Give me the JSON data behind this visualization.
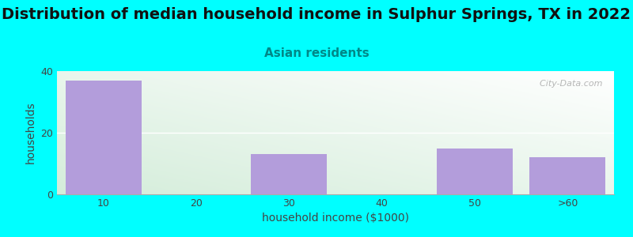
{
  "title": "Distribution of median household income in Sulphur Springs, TX in 2022",
  "subtitle": "Asian residents",
  "xlabel": "household income ($1000)",
  "ylabel": "households",
  "background_color": "#00FFFF",
  "bar_color": "#b39ddb",
  "categories": [
    "10",
    "20",
    "30",
    "40",
    "50",
    ">60"
  ],
  "values": [
    37,
    0,
    13,
    0,
    15,
    12
  ],
  "ylim": [
    0,
    40
  ],
  "yticks": [
    0,
    20,
    40
  ],
  "watermark": "  City-Data.com",
  "title_fontsize": 14,
  "subtitle_fontsize": 11,
  "axis_label_fontsize": 10,
  "tick_fontsize": 9,
  "title_color": "#111111",
  "subtitle_color": "#008888",
  "tick_color": "#444444",
  "label_color": "#444444",
  "watermark_color": "#aaaaaa",
  "grid_color": "#ffffff",
  "spine_color": "#aaaaaa"
}
